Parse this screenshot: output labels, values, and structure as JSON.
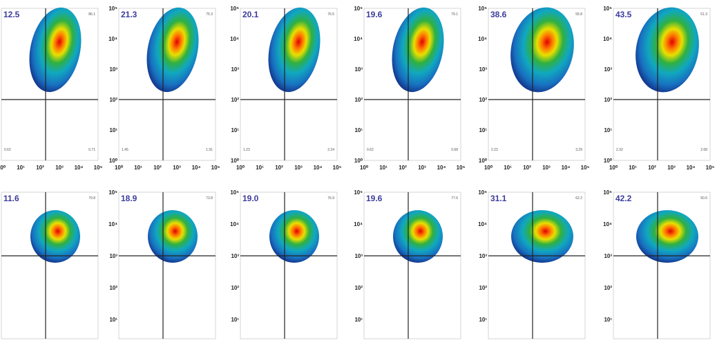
{
  "rows": [
    {
      "panels": [
        {
          "q_tl": "12.5",
          "q_tr": "86.1",
          "q_bl": "0.62",
          "q_br": "0.71"
        },
        {
          "q_tl": "21.3",
          "q_tr": "75.3",
          "q_bl": "1.45",
          "q_br": "1.91"
        },
        {
          "q_tl": "20.1",
          "q_tr": "76.5",
          "q_bl": "1.23",
          "q_br": "2.24"
        },
        {
          "q_tl": "19.6",
          "q_tr": "79.1",
          "q_bl": "0.62",
          "q_br": "0.68"
        },
        {
          "q_tl": "38.6",
          "q_tr": "55.8",
          "q_bl": "2.23",
          "q_br": "3.29"
        },
        {
          "q_tl": "43.5",
          "q_tr": "51.3",
          "q_bl": "2.32",
          "q_br": "2.68"
        }
      ]
    },
    {
      "panels": [
        {
          "q_tl": "11.6",
          "q_tr": "79.8"
        },
        {
          "q_tl": "18.9",
          "q_tr": "73.8"
        },
        {
          "q_tl": "19.0",
          "q_tr": "76.9"
        },
        {
          "q_tl": "19.6",
          "q_tr": "77.6"
        },
        {
          "q_tl": "31.1",
          "q_tr": "62.2"
        },
        {
          "q_tl": "42.2",
          "q_tr": "50.6"
        }
      ]
    }
  ],
  "axis_ticks": [
    "10⁰",
    "10¹",
    "10²",
    "10³",
    "10⁴",
    "10⁵"
  ]
}
